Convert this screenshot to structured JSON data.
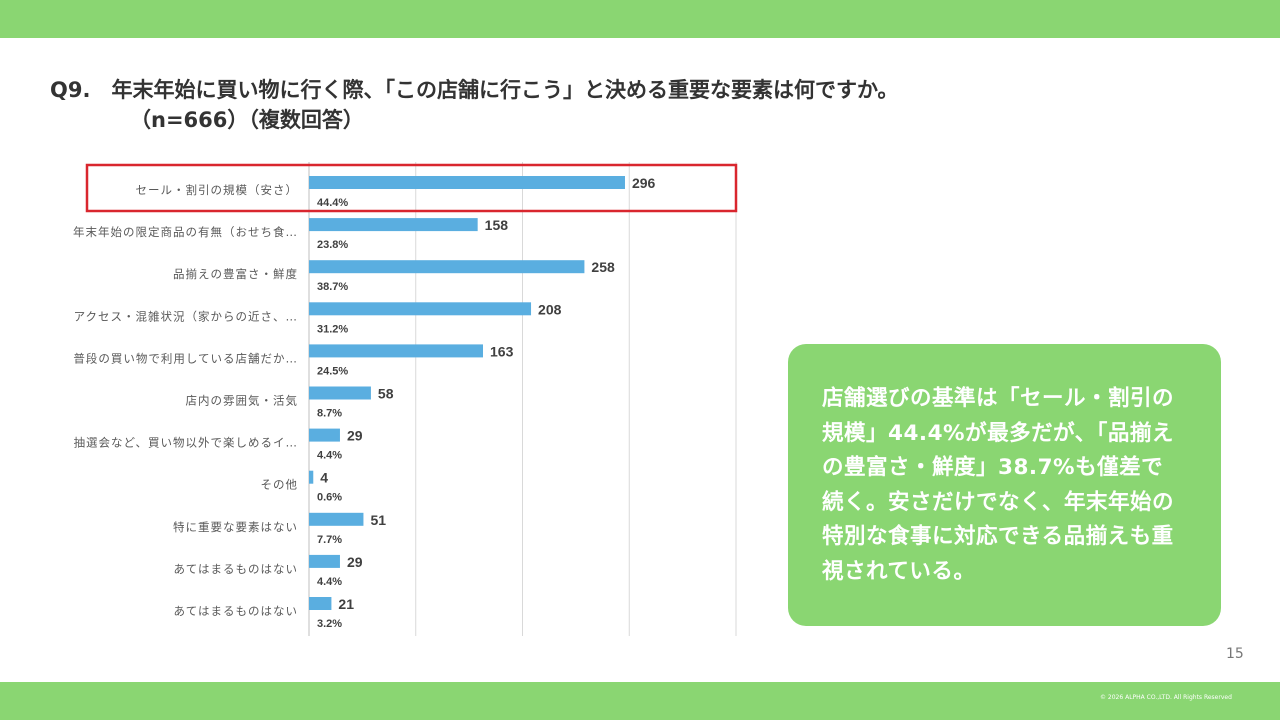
{
  "header": {
    "title": "Q9.　年末年始に買い物に行く際、「この店舗に行こう」と決める重要な要素は何ですか。",
    "subtitle": "（n=666）（複数回答）"
  },
  "chart_data": {
    "type": "bar",
    "orientation": "horizontal",
    "categories": [
      "セール・割引の規模（安さ）",
      "年末年始の限定商品の有無（おせち食…",
      "品揃えの豊富さ・鮮度",
      "アクセス・混雑状況（家からの近さ、…",
      "普段の買い物で利用している店舗だか…",
      "店内の雰囲気・活気",
      "抽選会など、買い物以外で楽しめるイ…",
      "その他",
      "特に重要な要素はない",
      "あてはまるものはない",
      "あてはまるものはない"
    ],
    "values": [
      296,
      158,
      258,
      208,
      163,
      58,
      29,
      4,
      51,
      29,
      21
    ],
    "value_labels": [
      "296",
      "158",
      "258",
      "208",
      "163",
      "58",
      "29",
      "4",
      "51",
      "29",
      "21"
    ],
    "percent_labels": [
      "44.4%",
      "23.8%",
      "38.7%",
      "31.2%",
      "24.5%",
      "8.7%",
      "4.4%",
      "0.6%",
      "7.7%",
      "4.4%",
      "3.2%"
    ],
    "xlim": [
      0,
      400
    ],
    "grid": true,
    "highlighted_category_index": 0,
    "bar_color": "#5aaee0",
    "highlight_color": "#d9262e"
  },
  "callout": {
    "text": "店舗選びの基準は「セール・割引の規模」44.4%が最多だが、「品揃えの豊富さ・鮮度」38.7%も僅差で続く。安さだけでなく、年末年始の特別な食事に対応できる品揃えも重視されている。"
  },
  "footer": {
    "page_number": "15",
    "copyright": "© 2026 ALPHA CO.,LTD. All Rights Reserved"
  },
  "colors": {
    "brand_green": "#8ad672",
    "text": "#333333"
  }
}
